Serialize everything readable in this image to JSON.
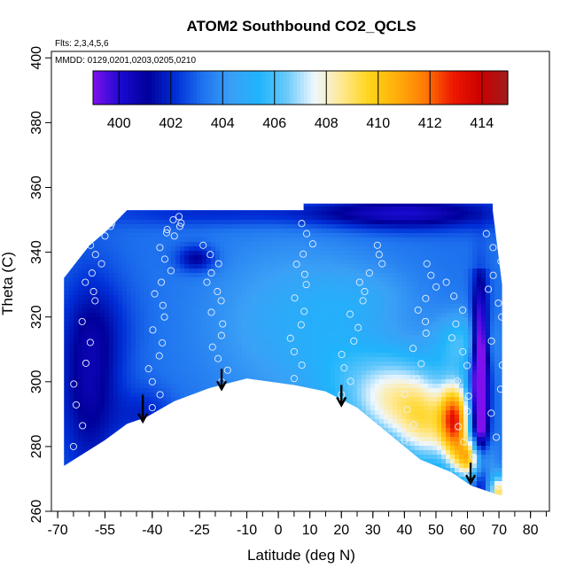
{
  "chart_data": {
    "type": "heatmap",
    "title": "ATOM2 Southbound CO2_QCLS",
    "flights_note": "Flts: 2,3,4,5,6",
    "dates_note": "MMDD: 0129,0201,0203,0205,0210",
    "xlabel": "Latitude (deg N)",
    "ylabel": "Theta (C)",
    "xlim": [
      -72,
      86
    ],
    "ylim": [
      260,
      402
    ],
    "x_ticks": [
      -70,
      -55,
      -40,
      -25,
      -10,
      0,
      10,
      20,
      30,
      40,
      50,
      60,
      70,
      80
    ],
    "y_ticks": [
      260,
      280,
      300,
      320,
      340,
      360,
      380,
      400
    ],
    "colorbar": {
      "min": 399,
      "max": 415,
      "ticks": [
        400,
        402,
        404,
        406,
        408,
        410,
        412,
        414
      ],
      "colors": [
        "#7f10ee",
        "#1a0ad0",
        "#00009a",
        "#0030d8",
        "#1f74ef",
        "#3aa0f6",
        "#1fb4fb",
        "#6ac9fb",
        "#eef7ff",
        "#ffe890",
        "#ffd41a",
        "#ffae0a",
        "#ff7a05",
        "#ee1a00",
        "#cc0000",
        "#a11d1d"
      ]
    },
    "surface": [
      {
        "lat": -68,
        "theta": 274
      },
      {
        "lat": -55,
        "theta": 282
      },
      {
        "lat": -48,
        "theta": 287
      },
      {
        "lat": -42,
        "theta": 289
      },
      {
        "lat": -33,
        "theta": 294
      },
      {
        "lat": -22,
        "theta": 298
      },
      {
        "lat": -10,
        "theta": 301
      },
      {
        "lat": 5,
        "theta": 299
      },
      {
        "lat": 15,
        "theta": 297
      },
      {
        "lat": 25,
        "theta": 292
      },
      {
        "lat": 35,
        "theta": 284
      },
      {
        "lat": 45,
        "theta": 276
      },
      {
        "lat": 55,
        "theta": 272
      },
      {
        "lat": 61,
        "theta": 268
      },
      {
        "lat": 70,
        "theta": 265
      }
    ],
    "top_boundary": [
      {
        "lat": -68,
        "theta": 332
      },
      {
        "lat": -60,
        "theta": 342
      },
      {
        "lat": -54,
        "theta": 347
      },
      {
        "lat": -48,
        "theta": 353
      },
      {
        "lat": 8,
        "theta": 353
      },
      {
        "lat": 8,
        "theta": 355
      },
      {
        "lat": 68,
        "theta": 355
      },
      {
        "lat": 68,
        "theta": 353
      },
      {
        "lat": 71,
        "theta": 330
      },
      {
        "lat": 71,
        "theta": 265
      }
    ],
    "flight_legs": [
      [
        [
          -65,
          280
        ],
        [
          -60,
          325
        ],
        [
          -57,
          345
        ],
        [
          -52,
          352
        ]
      ],
      [
        [
          -40,
          292
        ],
        [
          -38,
          320
        ],
        [
          -35,
          345
        ],
        [
          -30,
          352
        ]
      ],
      [
        [
          -18,
          300
        ],
        [
          -20,
          325
        ],
        [
          -22,
          345
        ]
      ],
      [
        [
          5,
          301
        ],
        [
          7,
          330
        ],
        [
          10,
          352
        ]
      ],
      [
        [
          20,
          296
        ],
        [
          25,
          325
        ],
        [
          35,
          345
        ]
      ],
      [
        [
          40,
          282
        ],
        [
          45,
          315
        ],
        [
          50,
          340
        ]
      ],
      [
        [
          60,
          272
        ],
        [
          58,
          305
        ],
        [
          55,
          335
        ]
      ],
      [
        [
          70,
          268
        ],
        [
          69,
          320
        ],
        [
          68,
          350
        ]
      ]
    ],
    "arrows": [
      {
        "lat": -43,
        "theta_start": 296,
        "theta_end": 288
      },
      {
        "lat": -18,
        "theta_start": 304,
        "theta_end": 298
      },
      {
        "lat": 20,
        "theta_start": 299,
        "theta_end": 293
      },
      {
        "lat": 61,
        "theta_start": 275,
        "theta_end": 269
      }
    ]
  }
}
